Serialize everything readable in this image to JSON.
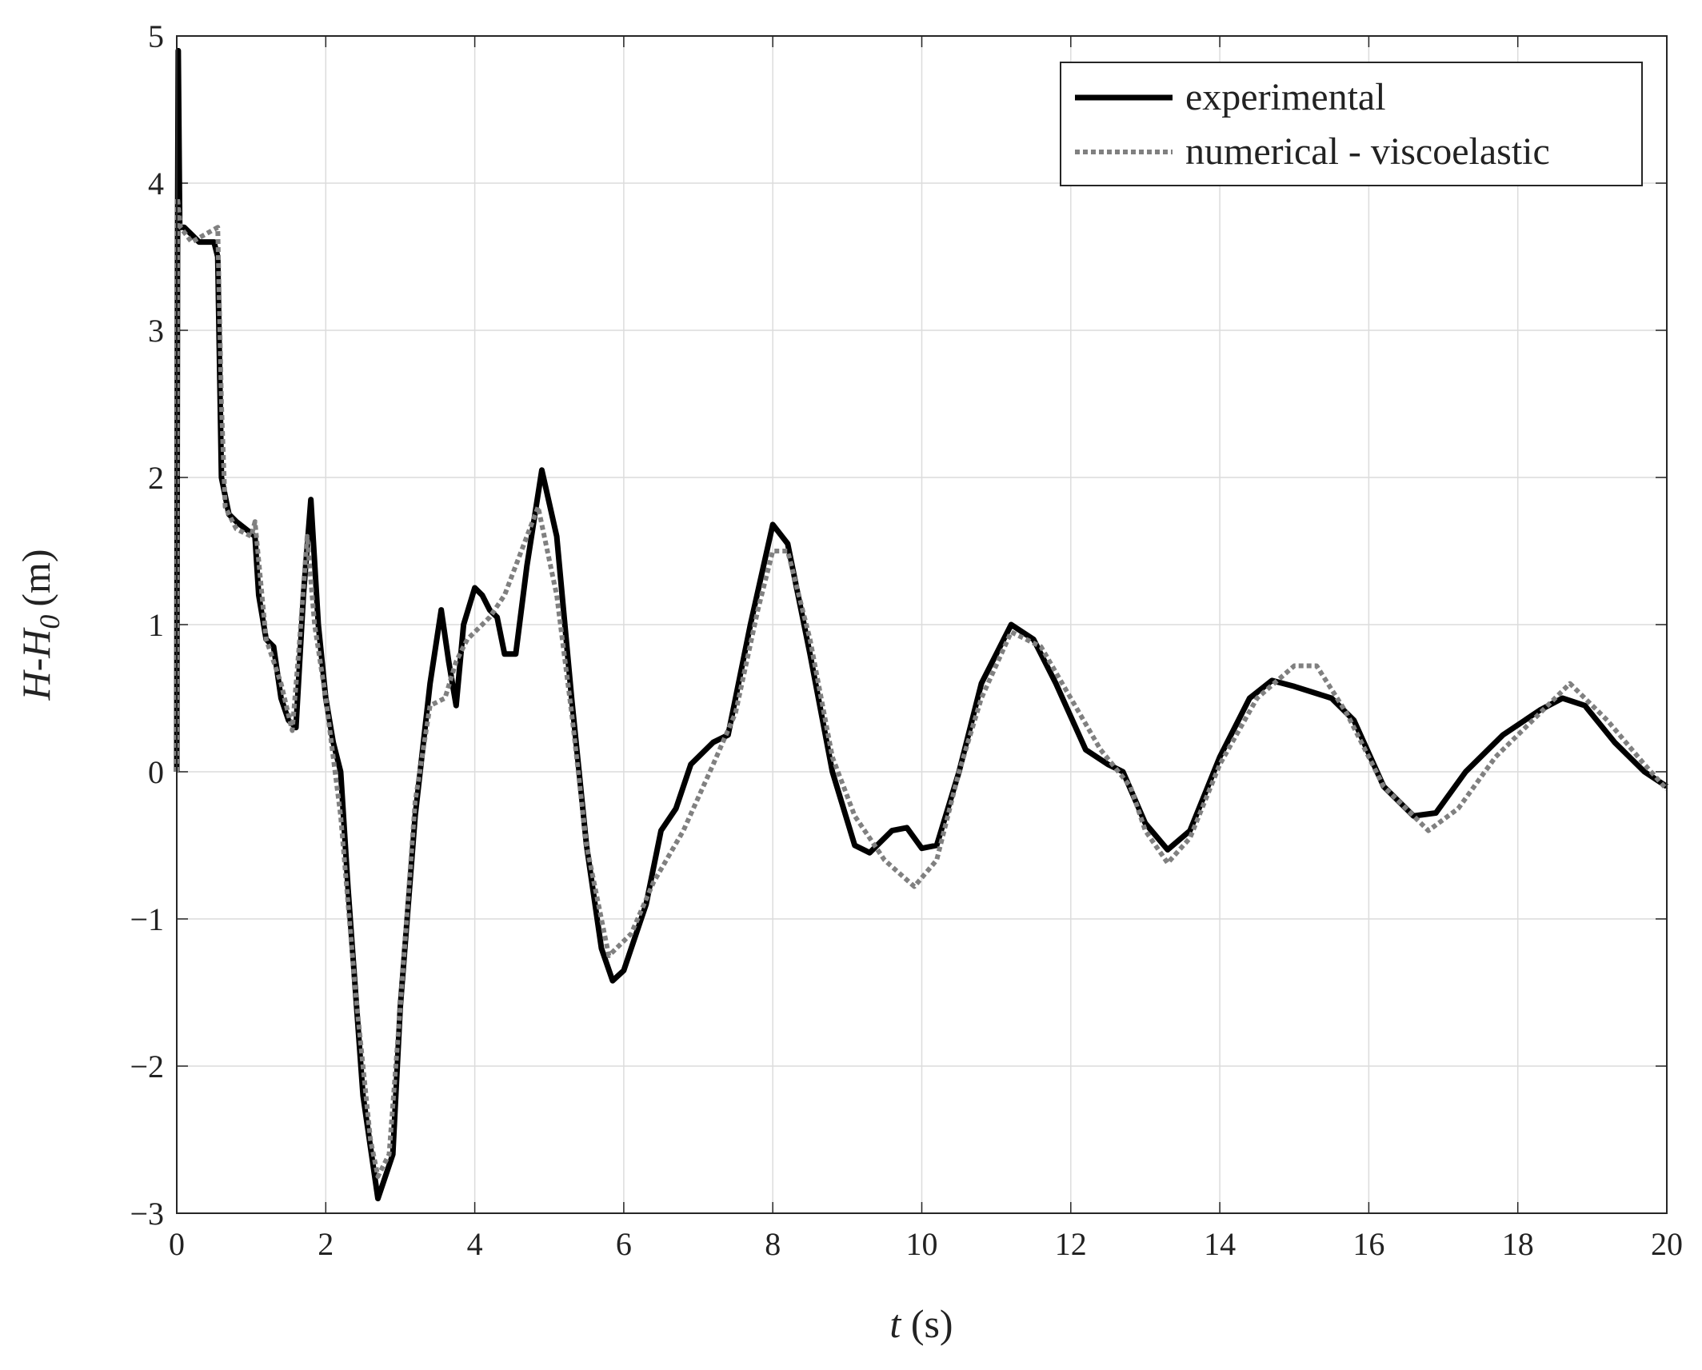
{
  "chart_data": {
    "type": "line",
    "x_label": {
      "var": "t",
      "unit": "(s)"
    },
    "y_label": {
      "main": "H-H",
      "sub": "0",
      "unit": "(m)"
    },
    "xlim": [
      0,
      20
    ],
    "xticks": [
      0,
      2,
      4,
      6,
      8,
      10,
      12,
      14,
      16,
      18,
      20
    ],
    "ylim": [
      -3,
      5
    ],
    "yticks": [
      {
        "value": -3,
        "label": "−3"
      },
      {
        "value": -2,
        "label": "−2"
      },
      {
        "value": -1,
        "label": "−1"
      },
      0,
      1,
      2,
      3,
      4,
      5
    ],
    "grid": true,
    "legend": "upper right",
    "series": [
      {
        "name": "experimental",
        "color": "#000000",
        "style": "solid",
        "x": [
          0,
          0.01,
          0.02,
          0.04,
          0.1,
          0.2,
          0.3,
          0.5,
          0.55,
          0.6,
          0.7,
          0.8,
          1.0,
          1.05,
          1.1,
          1.2,
          1.3,
          1.4,
          1.5,
          1.6,
          1.7,
          1.8,
          1.9,
          2.0,
          2.1,
          2.2,
          2.3,
          2.5,
          2.7,
          2.9,
          3.0,
          3.2,
          3.4,
          3.55,
          3.65,
          3.75,
          3.85,
          4.0,
          4.1,
          4.2,
          4.3,
          4.4,
          4.55,
          4.7,
          4.9,
          5.1,
          5.3,
          5.5,
          5.7,
          5.85,
          6.0,
          6.3,
          6.5,
          6.7,
          6.9,
          7.2,
          7.4,
          7.7,
          8.0,
          8.2,
          8.5,
          8.8,
          9.1,
          9.3,
          9.6,
          9.8,
          10.0,
          10.2,
          10.5,
          10.8,
          11.2,
          11.5,
          11.8,
          12.2,
          12.5,
          12.7,
          13.0,
          13.3,
          13.6,
          14.0,
          14.4,
          14.7,
          15.0,
          15.5,
          15.8,
          16.2,
          16.6,
          16.9,
          17.3,
          17.8,
          18.3,
          18.6,
          18.9,
          19.3,
          19.7,
          20
        ],
        "values": [
          0,
          3.5,
          4.9,
          3.7,
          3.7,
          3.65,
          3.6,
          3.6,
          3.5,
          2.0,
          1.75,
          1.7,
          1.62,
          1.6,
          1.2,
          0.9,
          0.85,
          0.5,
          0.35,
          0.3,
          1.2,
          1.85,
          1.0,
          0.5,
          0.2,
          0.0,
          -0.8,
          -2.2,
          -2.9,
          -2.6,
          -1.6,
          -0.3,
          0.6,
          1.1,
          0.75,
          0.45,
          1.0,
          1.25,
          1.2,
          1.1,
          1.05,
          0.8,
          0.8,
          1.4,
          2.05,
          1.6,
          0.5,
          -0.5,
          -1.2,
          -1.42,
          -1.35,
          -0.9,
          -0.4,
          -0.25,
          0.05,
          0.2,
          0.25,
          1.0,
          1.68,
          1.55,
          0.8,
          0.0,
          -0.5,
          -0.55,
          -0.4,
          -0.38,
          -0.52,
          -0.5,
          0.0,
          0.6,
          1.0,
          0.9,
          0.6,
          0.15,
          0.05,
          0.0,
          -0.35,
          -0.53,
          -0.4,
          0.1,
          0.5,
          0.62,
          0.58,
          0.5,
          0.35,
          -0.1,
          -0.3,
          -0.28,
          0.0,
          0.25,
          0.42,
          0.5,
          0.45,
          0.2,
          0.0,
          -0.1
        ]
      },
      {
        "name": "numerical - viscoelastic",
        "color": "#808080",
        "style": "dotted",
        "x": [
          0,
          0.01,
          0.05,
          0.2,
          0.55,
          0.6,
          0.65,
          0.8,
          1.0,
          1.05,
          1.2,
          1.4,
          1.55,
          1.65,
          1.75,
          1.85,
          2.0,
          2.2,
          2.4,
          2.6,
          2.7,
          2.85,
          3.0,
          3.2,
          3.4,
          3.6,
          3.75,
          3.9,
          4.2,
          4.4,
          4.7,
          4.85,
          5.1,
          5.3,
          5.5,
          5.8,
          6.1,
          6.4,
          6.8,
          7.2,
          7.5,
          7.8,
          8.0,
          8.2,
          8.5,
          8.8,
          9.1,
          9.5,
          9.9,
          10.2,
          10.5,
          10.8,
          11.2,
          11.6,
          12.0,
          12.4,
          12.8,
          13.0,
          13.3,
          13.6,
          14.0,
          14.5,
          15.0,
          15.3,
          15.7,
          16.2,
          16.8,
          17.2,
          17.7,
          18.2,
          18.7,
          19.2,
          19.7,
          20
        ],
        "values": [
          0,
          3.9,
          3.7,
          3.6,
          3.7,
          2.5,
          1.8,
          1.65,
          1.6,
          1.7,
          0.9,
          0.6,
          0.28,
          0.9,
          1.6,
          1.0,
          0.5,
          -0.3,
          -1.5,
          -2.5,
          -2.75,
          -2.6,
          -1.6,
          -0.2,
          0.45,
          0.5,
          0.75,
          0.9,
          1.05,
          1.2,
          1.6,
          1.8,
          1.2,
          0.4,
          -0.5,
          -1.25,
          -1.1,
          -0.75,
          -0.4,
          0.05,
          0.4,
          1.1,
          1.5,
          1.5,
          0.9,
          0.1,
          -0.3,
          -0.6,
          -0.78,
          -0.6,
          0.0,
          0.5,
          0.95,
          0.85,
          0.5,
          0.15,
          -0.1,
          -0.4,
          -0.62,
          -0.45,
          0.05,
          0.5,
          0.72,
          0.72,
          0.4,
          -0.1,
          -0.4,
          -0.25,
          0.1,
          0.35,
          0.6,
          0.35,
          0.05,
          -0.12
        ]
      }
    ]
  }
}
